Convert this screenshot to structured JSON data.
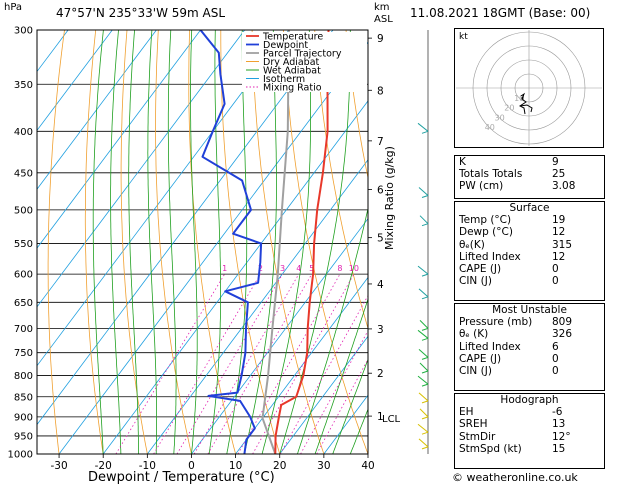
{
  "header": {
    "location": "47°57'N  235°33'W  59m  ASL",
    "datetime": "11.08.2021  18GMT  (Base: 00)",
    "hpa_label": "hPa",
    "km_label_1": "km",
    "km_label_2": "ASL"
  },
  "chart_data": {
    "type": "skew-t",
    "xlabel": "Dewpoint / Temperature (°C)",
    "mixing_ratio_label": "Mixing Ratio (g/kg)",
    "pressure_ticks": [
      300,
      350,
      400,
      450,
      500,
      550,
      600,
      650,
      700,
      750,
      800,
      850,
      900,
      950,
      1000
    ],
    "temperature_ticks": [
      -30,
      -20,
      -10,
      0,
      10,
      20,
      30,
      40
    ],
    "km_ticks": [
      {
        "label": "9",
        "p": 307
      },
      {
        "label": "8",
        "p": 356
      },
      {
        "label": "7",
        "p": 411
      },
      {
        "label": "6",
        "p": 472
      },
      {
        "label": "5",
        "p": 541
      },
      {
        "label": "4",
        "p": 617
      },
      {
        "label": "3",
        "p": 701
      },
      {
        "label": "2",
        "p": 795
      },
      {
        "label": "1",
        "p": 898
      }
    ],
    "lcl_label": "LCL",
    "lcl_pressure": 903,
    "mixing_ratio_values": [
      1,
      2,
      3,
      4,
      5,
      8,
      10,
      15,
      20,
      25
    ],
    "legend": [
      "Temperature",
      "Dewpoint",
      "Parcel Trajectory",
      "Dry Adiabat",
      "Wet Adiabat",
      "Isotherm",
      "Mixing Ratio"
    ],
    "colors": {
      "temperature": "#e8382a",
      "dewpoint": "#2040d8",
      "parcel": "#a0a0a0",
      "dry_adiabat": "#f0a030",
      "wet_adiabat": "#20a020",
      "isotherm": "#20a0e0",
      "mixing_ratio": "#e020b0"
    },
    "temperature_profile": [
      {
        "p": 1000,
        "t": 19
      },
      {
        "p": 950,
        "t": 16
      },
      {
        "p": 900,
        "t": 13.5
      },
      {
        "p": 870,
        "t": 12
      },
      {
        "p": 850,
        "t": 14
      },
      {
        "p": 800,
        "t": 12
      },
      {
        "p": 750,
        "t": 9
      },
      {
        "p": 700,
        "t": 5
      },
      {
        "p": 650,
        "t": 1
      },
      {
        "p": 600,
        "t": -3
      },
      {
        "p": 550,
        "t": -8
      },
      {
        "p": 500,
        "t": -13
      },
      {
        "p": 450,
        "t": -18
      },
      {
        "p": 400,
        "t": -24
      },
      {
        "p": 350,
        "t": -32
      },
      {
        "p": 300,
        "t": -41
      }
    ],
    "dewpoint_profile": [
      {
        "p": 1000,
        "t": 12
      },
      {
        "p": 960,
        "t": 10
      },
      {
        "p": 930,
        "t": 10
      },
      {
        "p": 900,
        "t": 7
      },
      {
        "p": 860,
        "t": 2
      },
      {
        "p": 848,
        "t": -6
      },
      {
        "p": 840,
        "t": 0
      },
      {
        "p": 800,
        "t": -2
      },
      {
        "p": 750,
        "t": -5
      },
      {
        "p": 700,
        "t": -9
      },
      {
        "p": 650,
        "t": -13
      },
      {
        "p": 630,
        "t": -20
      },
      {
        "p": 615,
        "t": -14
      },
      {
        "p": 580,
        "t": -17
      },
      {
        "p": 550,
        "t": -20
      },
      {
        "p": 535,
        "t": -28
      },
      {
        "p": 500,
        "t": -28
      },
      {
        "p": 460,
        "t": -35
      },
      {
        "p": 430,
        "t": -48
      },
      {
        "p": 400,
        "t": -50
      },
      {
        "p": 370,
        "t": -52
      },
      {
        "p": 340,
        "t": -58
      },
      {
        "p": 320,
        "t": -62
      },
      {
        "p": 300,
        "t": -70
      }
    ],
    "parcel_profile": [
      {
        "p": 1000,
        "t": 19
      },
      {
        "p": 903,
        "t": 10
      },
      {
        "p": 850,
        "t": 7
      },
      {
        "p": 800,
        "t": 4
      },
      {
        "p": 700,
        "t": -3
      },
      {
        "p": 600,
        "t": -11
      },
      {
        "p": 500,
        "t": -21
      },
      {
        "p": 400,
        "t": -33
      },
      {
        "p": 300,
        "t": -50
      }
    ]
  },
  "hodograph": {
    "label": "kt",
    "ring_labels": [
      "10",
      "20",
      "30",
      "40"
    ]
  },
  "indices": {
    "rows": [
      {
        "label": "K",
        "value": "9"
      },
      {
        "label": "Totals Totals",
        "value": "25"
      },
      {
        "label": "PW (cm)",
        "value": "3.08"
      }
    ]
  },
  "surface": {
    "title": "Surface",
    "rows": [
      {
        "label": "Temp (°C)",
        "value": "19"
      },
      {
        "label": "Dewp (°C)",
        "value": "12"
      },
      {
        "label": "θₑ(K)",
        "value": "315"
      },
      {
        "label": "Lifted Index",
        "value": "12"
      },
      {
        "label": "CAPE (J)",
        "value": "0"
      },
      {
        "label": "CIN (J)",
        "value": "0"
      }
    ]
  },
  "most_unstable": {
    "title": "Most Unstable",
    "rows": [
      {
        "label": "Pressure (mb)",
        "value": "809"
      },
      {
        "label": "θₑ (K)",
        "value": "326"
      },
      {
        "label": "Lifted Index",
        "value": "6"
      },
      {
        "label": "CAPE (J)",
        "value": "0"
      },
      {
        "label": "CIN (J)",
        "value": "0"
      }
    ]
  },
  "hodograph_table": {
    "title": "Hodograph",
    "rows": [
      {
        "label": "EH",
        "value": "-6"
      },
      {
        "label": "SREH",
        "value": "13"
      },
      {
        "label": "StmDir",
        "value": "12°"
      },
      {
        "label": "StmSpd (kt)",
        "value": "15"
      }
    ]
  },
  "copyright": "© weatheronline.co.uk"
}
